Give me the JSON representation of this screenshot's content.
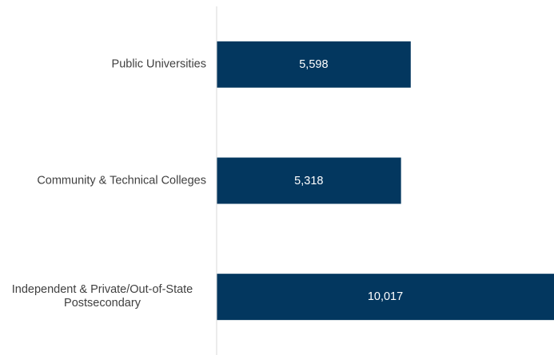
{
  "chart_data": {
    "type": "bar",
    "orientation": "horizontal",
    "categories": [
      "Public Universities",
      "Community & Technical Colleges",
      "Independent & Private/Out-of-State Postsecondary"
    ],
    "values": [
      5598,
      5318,
      10017
    ],
    "value_labels": [
      "5,598",
      "5,318",
      "10,017"
    ],
    "color": "#03375f",
    "xlim": [
      0,
      9730
    ]
  }
}
